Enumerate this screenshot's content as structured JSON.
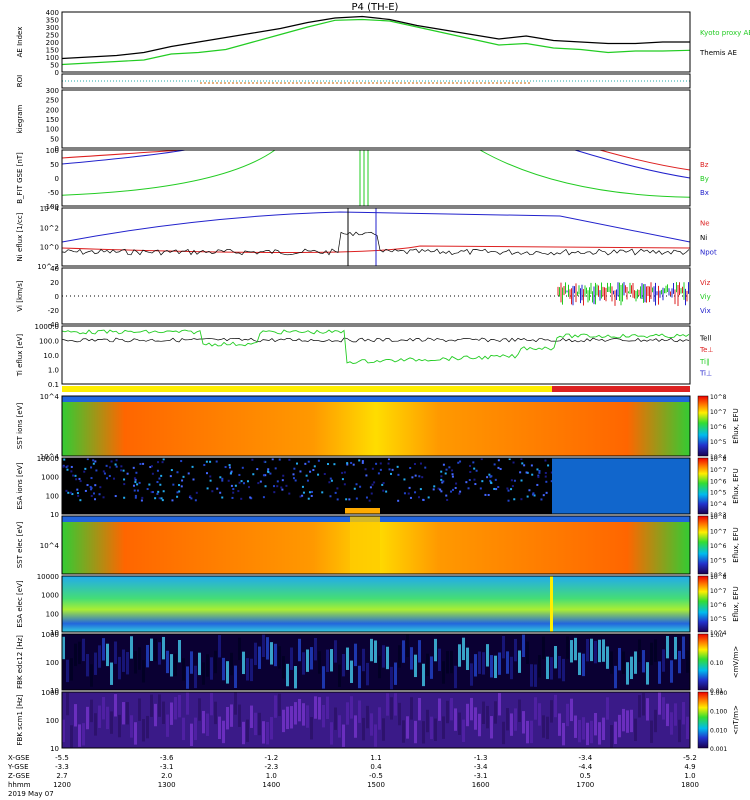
{
  "chart_data": {
    "type": "line",
    "title": "P4 (TH-E)",
    "date": "2019 May 07",
    "time_axis": {
      "ticks": [
        "1200",
        "1300",
        "1400",
        "1500",
        "1600",
        "1700",
        "1800"
      ],
      "rows": [
        {
          "label": "X-GSE",
          "values": [
            "-5.5",
            "-3.6",
            "-1.2",
            "1.1",
            "-1.3",
            "-3.4",
            "-5.2"
          ]
        },
        {
          "label": "Y-GSE",
          "values": [
            "-3.3",
            "-3.1",
            "-2.3",
            "0.4",
            "-3.4",
            "-4.4",
            "4.9"
          ]
        },
        {
          "label": "Z-GSE",
          "values": [
            "2.7",
            "2.0",
            "1.0",
            "-0.5",
            "-3.1",
            "0.5",
            "1.0"
          ]
        },
        {
          "label": "hhmm",
          "values": [
            "1200",
            "1300",
            "1400",
            "1500",
            "1600",
            "1700",
            "1800"
          ]
        }
      ]
    },
    "panels": [
      {
        "id": "ae",
        "ylabel": "AE Index",
        "yticks": [
          "400",
          "350",
          "300",
          "250",
          "200",
          "150",
          "100",
          "50",
          "0"
        ],
        "series": [
          {
            "name": "Kyoto proxy AE",
            "color": "#22cc22",
            "values": [
              50,
              60,
              70,
              80,
              120,
              130,
              150,
              200,
              250,
              300,
              345,
              350,
              340,
              300,
              260,
              220,
              180,
              190,
              160,
              150,
              130,
              140,
              140,
              145
            ]
          },
          {
            "name": "Themis AE",
            "color": "#000000",
            "values": [
              90,
              100,
              110,
              130,
              170,
              200,
              230,
              260,
              290,
              330,
              360,
              370,
              350,
              310,
              280,
              250,
              220,
              240,
              210,
              200,
              190,
              190,
              200,
              200
            ]
          }
        ]
      },
      {
        "id": "roi",
        "ylabel": "ROI"
      },
      {
        "id": "kp",
        "ylabel": "kiegram",
        "yticks": [
          "300",
          "250",
          "200",
          "150",
          "100",
          "50",
          "0"
        ]
      },
      {
        "id": "bfit",
        "ylabel": "B_FIT GSE [nT]",
        "yticks": [
          "100",
          "50",
          "0",
          "-50",
          "-100"
        ],
        "series": [
          {
            "name": "Bz",
            "color": "#dd2222"
          },
          {
            "name": "By",
            "color": "#22cc22"
          },
          {
            "name": "Bx",
            "color": "#2222cc"
          }
        ]
      },
      {
        "id": "ni",
        "ylabel": "Ni eflux [1/cc]",
        "yticks": [
          "10^4",
          "10^2",
          "10^0",
          "10^-2"
        ],
        "series": [
          {
            "name": "Ne",
            "color": "#dd2222"
          },
          {
            "name": "Ni",
            "color": "#000000"
          },
          {
            "name": "Npot",
            "color": "#2222cc"
          }
        ]
      },
      {
        "id": "vi",
        "ylabel": "Vi [km/s]",
        "yticks": [
          "40",
          "20",
          "0",
          "-20",
          "-40"
        ],
        "series": [
          {
            "name": "Viz",
            "color": "#dd2222"
          },
          {
            "name": "Viy",
            "color": "#22cc22"
          },
          {
            "name": "Vix",
            "color": "#2222cc"
          }
        ]
      },
      {
        "id": "ti",
        "ylabel": "Ti eflux [eV]",
        "yticks": [
          "1000.0",
          "100.0",
          "10.0",
          "1.0",
          "0.1"
        ],
        "series": [
          {
            "name": "Tell",
            "color": "#000000"
          },
          {
            "name": "Te⊥",
            "color": "#dd2222"
          },
          {
            "name": "Ti∥",
            "color": "#22cc22"
          },
          {
            "name": "Ti⊥",
            "color": "#2222cc"
          }
        ]
      },
      {
        "id": "sst_i",
        "ylabel": "SST ions [eV]",
        "yticks": [
          "10^4",
          "10^4"
        ],
        "cbar": "Eflux, EFU",
        "cticks": [
          "10^8",
          "10^7",
          "10^6",
          "10^5",
          "10^4"
        ]
      },
      {
        "id": "esa_i",
        "ylabel": "ESA ions [eV]",
        "yticks": [
          "10000",
          "1000",
          "100",
          "10"
        ],
        "cbar": "Eflux, EFU",
        "cticks": [
          "10^8",
          "10^7",
          "10^6",
          "10^5",
          "10^4",
          "10^3"
        ]
      },
      {
        "id": "sst_e",
        "ylabel": "SST elec [eV]",
        "yticks": [
          "10^4"
        ],
        "cbar": "Eflux, EFU",
        "cticks": [
          "10^8",
          "10^7",
          "10^6",
          "10^5",
          "10^4"
        ]
      },
      {
        "id": "esa_e",
        "ylabel": "ESA elec [eV]",
        "yticks": [
          "10000",
          "1000",
          "100",
          "10"
        ],
        "cbar": "Eflux, EFU",
        "cticks": [
          "10^8",
          "10^7",
          "10^6",
          "10^5",
          "10^4"
        ]
      },
      {
        "id": "fbk1",
        "ylabel": "FBK edc12 [Hz]",
        "yticks": [
          "1000",
          "100",
          "10"
        ],
        "cbar": "<mV/m>",
        "cticks": [
          "1.00",
          "0.10",
          "0.01"
        ]
      },
      {
        "id": "fbk2",
        "ylabel": "FBK scm1 [Hz]",
        "yticks": [
          "1000",
          "100",
          "10"
        ],
        "cbar": "<nT/m>",
        "cticks": [
          "1.000",
          "0.100",
          "0.010",
          "0.001"
        ]
      }
    ]
  }
}
